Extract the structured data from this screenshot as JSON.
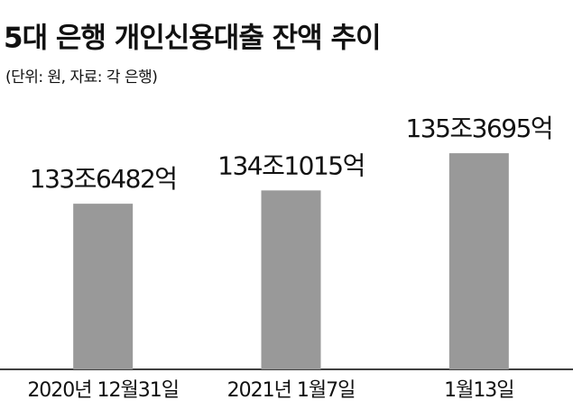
{
  "chart_data": {
    "type": "bar",
    "title": "5대 은행 개인신용대출 잔액 추이",
    "subtitle": "(단위: 원, 자료: 각 은행)",
    "categories": [
      "2020년 12월31일",
      "2021년 1월7일",
      "1월13일"
    ],
    "values": [
      1336482,
      1341015,
      1353695
    ],
    "value_labels": [
      "133조6482억",
      "134조1015억",
      "135조3695억"
    ],
    "color": "#999999",
    "ylim": [
      1280000,
      1370000
    ]
  }
}
